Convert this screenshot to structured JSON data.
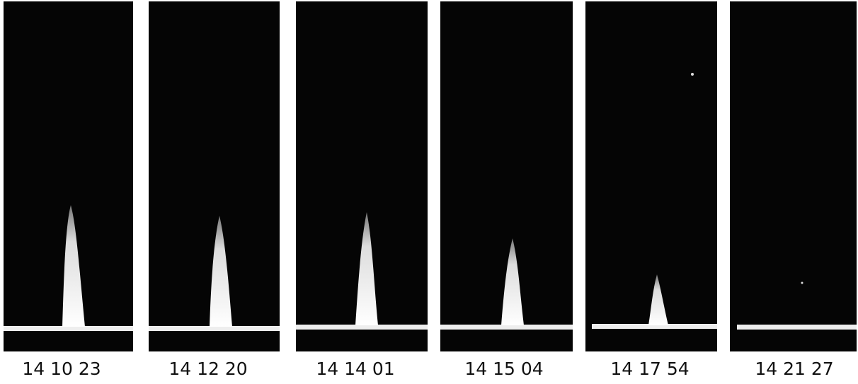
{
  "panels": [
    {
      "label": "14 10 23"
    },
    {
      "label": "14 12 20"
    },
    {
      "label": "14 14 01"
    },
    {
      "label": "14 15 04"
    },
    {
      "label": "14 17 54"
    },
    {
      "label": "14 21 27"
    }
  ]
}
